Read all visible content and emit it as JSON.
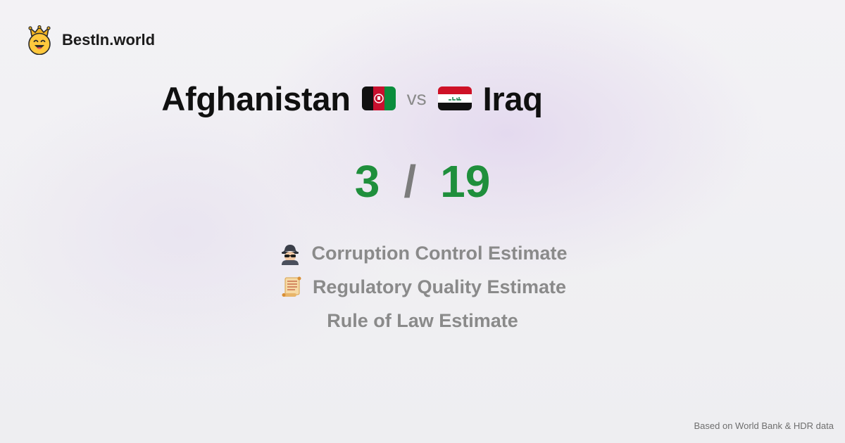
{
  "brand": {
    "name": "BestIn.world",
    "icon": "crown-smiley-icon"
  },
  "comparison": {
    "left_country": "Afghanistan",
    "left_flag": "afghanistan-flag-icon",
    "vs_label": "vs",
    "right_country": "Iraq",
    "right_flag": "iraq-flag-icon"
  },
  "scores": {
    "left": "3",
    "separator": "/",
    "right": "19",
    "color": "#1f8f3c"
  },
  "metrics": [
    {
      "label": "Corruption Control Estimate",
      "icon": "spy-icon"
    },
    {
      "label": "Regulatory Quality Estimate",
      "icon": "scroll-icon"
    },
    {
      "label": "Rule of Law Estimate",
      "icon": ""
    }
  ],
  "footer": {
    "source": "Based on World Bank & HDR data"
  }
}
